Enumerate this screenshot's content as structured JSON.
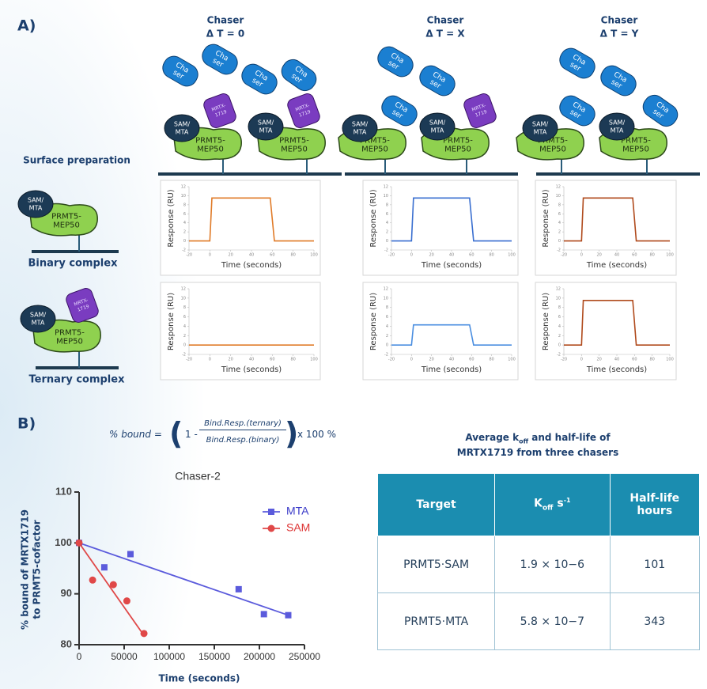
{
  "panel_a": {
    "label": "A)",
    "columns": [
      {
        "title": "Chaser",
        "delta": "Δ T = 0"
      },
      {
        "title": "Chaser",
        "delta": "Δ T = X"
      },
      {
        "title": "Chaser",
        "delta": "Δ T = Y"
      }
    ],
    "surface_preparation": "Surface preparation",
    "binary_complex": "Binary complex",
    "ternary_complex": "Ternary complex",
    "protein_labels": {
      "chaser": [
        "Cha",
        "ser"
      ],
      "sam": [
        "SAM/",
        "MTA"
      ],
      "prmt5": [
        "PRMT5-",
        "MEP50"
      ],
      "mrtx": [
        "MRTX-",
        "1719"
      ]
    }
  },
  "panel_b": {
    "label": "B)",
    "equation": {
      "lhs": "% bound =",
      "one": "1 -",
      "numerator": "Bind.Resp.(ternary)",
      "denominator": "Bind.Resp.(binary)",
      "factor": "x 100 %"
    }
  },
  "chart_data": [
    {
      "type": "line",
      "xlabel": "Time (seconds)",
      "ylabel": "Response (RU)",
      "color": "#e07b28",
      "x": [
        -20,
        0,
        2,
        58,
        62,
        100
      ],
      "values": [
        0,
        0,
        9.5,
        9.5,
        0,
        0
      ],
      "xlim": [
        -20,
        100
      ],
      "xticks": [
        -20,
        0,
        20,
        40,
        60,
        80,
        100
      ],
      "ylim": [
        -2,
        12
      ],
      "yticks": [
        -2,
        0,
        2,
        4,
        6,
        8,
        10,
        12
      ]
    },
    {
      "type": "line",
      "xlabel": "Time (seconds)",
      "ylabel": "Response (RU)",
      "color": "#3a6fd0",
      "x": [
        -20,
        0,
        2,
        58,
        62,
        100
      ],
      "values": [
        0,
        0,
        9.5,
        9.5,
        0,
        0
      ],
      "xlim": [
        -20,
        100
      ],
      "xticks": [
        -20,
        0,
        20,
        40,
        60,
        80,
        100
      ],
      "ylim": [
        -2,
        12
      ],
      "yticks": [
        -2,
        0,
        2,
        4,
        6,
        8,
        10,
        12
      ]
    },
    {
      "type": "line",
      "xlabel": "Time (seconds)",
      "ylabel": "Response (RU)",
      "color": "#b04a1c",
      "x": [
        -20,
        0,
        2,
        58,
        62,
        100
      ],
      "values": [
        0,
        0,
        9.5,
        9.5,
        0,
        0
      ],
      "xlim": [
        -20,
        100
      ],
      "xticks": [
        -20,
        0,
        20,
        40,
        60,
        80,
        100
      ],
      "ylim": [
        -2,
        12
      ],
      "yticks": [
        -2,
        0,
        2,
        4,
        6,
        8,
        10,
        12
      ]
    },
    {
      "type": "line",
      "xlabel": "Time (seconds)",
      "ylabel": "Response (RU)",
      "color": "#e07b28",
      "x": [
        -20,
        0,
        2,
        58,
        62,
        100
      ],
      "values": [
        0,
        0,
        0,
        0,
        0,
        0
      ],
      "xlim": [
        -20,
        100
      ],
      "xticks": [
        -20,
        0,
        20,
        40,
        60,
        80,
        100
      ],
      "ylim": [
        -2,
        12
      ],
      "yticks": [
        -2,
        0,
        2,
        4,
        6,
        8,
        10,
        12
      ]
    },
    {
      "type": "line",
      "xlabel": "Time (seconds)",
      "ylabel": "Response (RU)",
      "color": "#4a8ee0",
      "x": [
        -20,
        0,
        2,
        58,
        62,
        100
      ],
      "values": [
        0,
        0,
        4.3,
        4.3,
        0,
        0
      ],
      "xlim": [
        -20,
        100
      ],
      "xticks": [
        -20,
        0,
        20,
        40,
        60,
        80,
        100
      ],
      "ylim": [
        -2,
        12
      ],
      "yticks": [
        -2,
        0,
        2,
        4,
        6,
        8,
        10,
        12
      ]
    },
    {
      "type": "line",
      "xlabel": "Time (seconds)",
      "ylabel": "Response (RU)",
      "color": "#b04a1c",
      "x": [
        -20,
        0,
        2,
        58,
        62,
        100
      ],
      "values": [
        0,
        0,
        9.5,
        9.5,
        0,
        0
      ],
      "xlim": [
        -20,
        100
      ],
      "xticks": [
        -20,
        0,
        20,
        40,
        60,
        80,
        100
      ],
      "ylim": [
        -2,
        12
      ],
      "yticks": [
        -2,
        0,
        2,
        4,
        6,
        8,
        10,
        12
      ]
    },
    {
      "type": "scatter",
      "title": "Chaser-2",
      "xlabel": "Time (seconds)",
      "ylabel": [
        "% bound of MRTX1719",
        "to PRMT5-cofactor"
      ],
      "xlim": [
        0,
        250000
      ],
      "xticks": [
        0,
        50000,
        100000,
        150000,
        200000,
        250000
      ],
      "ylim": [
        80,
        110
      ],
      "yticks": [
        80,
        90,
        100,
        110
      ],
      "legend": "upper right",
      "series": [
        {
          "name": "MTA",
          "color": "#5b5bdc",
          "marker": "square",
          "x": [
            0,
            28000,
            57000,
            177000,
            205000,
            232000
          ],
          "values": [
            100,
            95.2,
            97.8,
            90.9,
            86,
            85.8
          ],
          "fit_x": [
            0,
            232000
          ],
          "fit_y": [
            100,
            85.8
          ]
        },
        {
          "name": "SAM",
          "color": "#e04848",
          "marker": "circle",
          "x": [
            0,
            15000,
            38000,
            53000,
            72000
          ],
          "values": [
            100,
            92.7,
            91.8,
            88.6,
            82.2
          ],
          "fit_x": [
            0,
            72000
          ],
          "fit_y": [
            100,
            81.8
          ]
        }
      ]
    }
  ],
  "table": {
    "title": {
      "pre": "Average k",
      "sub": "off",
      "post": " and half-life of",
      "line2": "MRTX1719 from three chasers"
    },
    "header": [
      "Target",
      {
        "main": "K",
        "sub": "off",
        "unit": " s",
        "sup": "-1"
      },
      [
        "Half-life",
        "hours"
      ]
    ],
    "rows": [
      [
        "PRMT5·SAM",
        "1.9 × 10−6",
        "101"
      ],
      [
        "PRMT5·MTA",
        "5.8 × 10−7",
        "343"
      ]
    ]
  }
}
